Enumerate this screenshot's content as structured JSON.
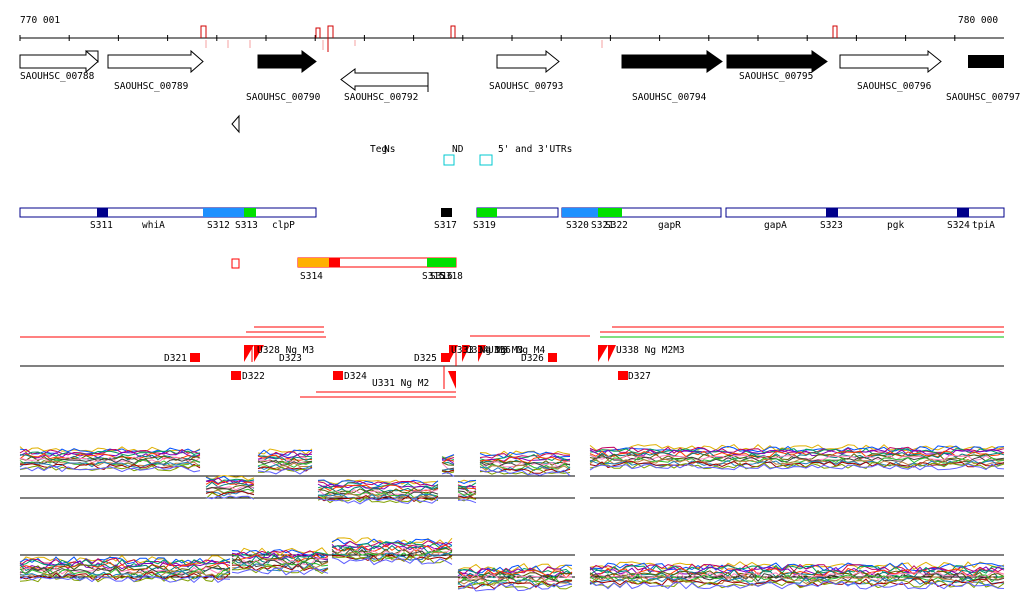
{
  "coords": {
    "start": "770 001",
    "end": "780 000"
  },
  "genes": [
    {
      "label": "SAOUHSC_00788",
      "filled": false,
      "dir": "right"
    },
    {
      "label": "SAOUHSC_00789",
      "filled": false,
      "dir": "right"
    },
    {
      "label": "SAOUHSC_00790",
      "filled": true,
      "dir": "right"
    },
    {
      "label": "SAOUHSC_00792",
      "filled": false,
      "dir": "left"
    },
    {
      "label": "SAOUHSC_00793",
      "filled": false,
      "dir": "right"
    },
    {
      "label": "SAOUHSC_00794",
      "filled": true,
      "dir": "right"
    },
    {
      "label": "SAOUHSC_00795",
      "filled": true,
      "dir": "right"
    },
    {
      "label": "SAOUHSC_00796",
      "filled": false,
      "dir": "right"
    },
    {
      "label": "SAOUHSC_00797",
      "filled": true,
      "dir": "right"
    }
  ],
  "utr_text": [
    "Teg",
    "Ns",
    "ND",
    "5' and 3'UTRs"
  ],
  "segments_fwd": [
    "S311",
    "whiA",
    "S312",
    "S313",
    "clpP",
    "S317",
    "S319",
    "S320",
    "S321",
    "S322",
    "gapR",
    "gapA",
    "S323",
    "pgk",
    "S324",
    "tpiA"
  ],
  "segments_rev": [
    "S314",
    "S315",
    "S316",
    "S318"
  ],
  "downshifts": [
    "D321",
    "D322",
    "D323",
    "D324",
    "D325",
    "D326",
    "D327"
  ],
  "upshift_labels": [
    "U328 Ng M3",
    "U331 Ng M2",
    "U333 Ng M3",
    "U336 Ng M4",
    "U334 Ng M3",
    "U338 Ng M2M3"
  ],
  "colors": {
    "segment_blue": "#1e90ff",
    "segment_navy": "#00008b",
    "segment_green": "#00e000",
    "segment_orange": "#ffb000",
    "segment_red": "#ff0000",
    "utr_box": "#00c8d0"
  }
}
